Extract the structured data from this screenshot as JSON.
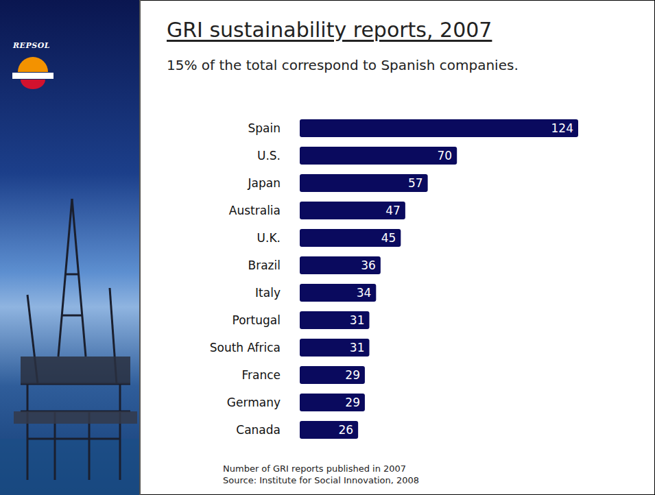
{
  "chart_data": {
    "type": "bar",
    "title": "GRI sustainability reports, 2007",
    "subtitle": "15% of the total correspond to Spanish companies.",
    "logo": "REPSOL",
    "annotations": [
      "Number of GRI reports published in 2007",
      "Source: Institute for Social Innovation, 2008"
    ],
    "categories": [
      "Spain",
      "U.S.",
      "Japan",
      "Australia",
      "U.K.",
      "Brazil",
      "Italy",
      "Portugal",
      "South Africa",
      "France",
      "Germany",
      "Canada"
    ],
    "values": [
      124,
      70,
      57,
      47,
      45,
      36,
      34,
      31,
      31,
      29,
      29,
      26
    ],
    "color": "#0a0a5e",
    "orientation": "horizontal",
    "xlim": [
      0,
      124
    ],
    "data_labels": true,
    "tick_labels": "y",
    "grid": false
  }
}
